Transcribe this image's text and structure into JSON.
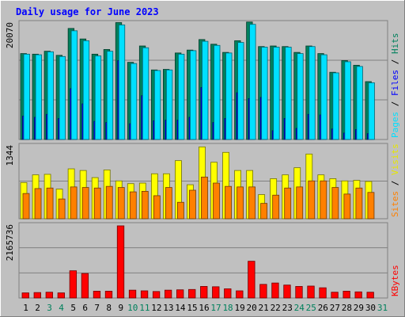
{
  "chart_data": [
    {
      "type": "bar",
      "title": "Daily usage for June 2023",
      "x": [
        "1",
        "2",
        "3",
        "4",
        "5",
        "6",
        "7",
        "8",
        "9",
        "10",
        "11",
        "12",
        "13",
        "14",
        "15",
        "16",
        "17",
        "18",
        "19",
        "20",
        "21",
        "22",
        "23",
        "24",
        "25",
        "26",
        "27",
        "28",
        "29",
        "30",
        "31"
      ],
      "weekend_days": [
        "3",
        "4",
        "10",
        "11",
        "17",
        "18",
        "24",
        "25",
        "31"
      ],
      "ylabel_top_tick": "20070",
      "ylim": [
        0,
        20070
      ],
      "series": [
        {
          "name": "Hits",
          "color": "#00805c",
          "values": [
            14700,
            14600,
            15100,
            14400,
            19000,
            17200,
            14600,
            15400,
            20000,
            13200,
            16000,
            11900,
            12000,
            14800,
            15300,
            17100,
            16300,
            14900,
            16900,
            20100,
            15900,
            16000,
            15900,
            14900,
            16000,
            14700,
            11500,
            13500,
            12700,
            9900,
            null
          ]
        },
        {
          "name": "Files",
          "color": "#0000ff",
          "values": [
            4000,
            3800,
            4300,
            3600,
            8700,
            6100,
            3100,
            2900,
            13500,
            2700,
            7500,
            3200,
            3300,
            3300,
            3800,
            8900,
            2900,
            3600,
            8000,
            7000,
            7200,
            1500,
            3600,
            1900,
            4300,
            4200,
            1800,
            1100,
            1700,
            1000,
            null
          ]
        },
        {
          "name": "Pages",
          "color": "#00e0ff",
          "values": [
            14600,
            14500,
            15000,
            14200,
            18600,
            16900,
            14300,
            15100,
            19600,
            13000,
            15700,
            11800,
            11900,
            14600,
            15200,
            16800,
            16100,
            14800,
            16600,
            19700,
            15800,
            15800,
            15800,
            14700,
            15900,
            14500,
            11400,
            13300,
            12500,
            9700,
            null
          ]
        }
      ]
    },
    {
      "type": "bar",
      "ylabel_top_tick": "1344",
      "ylim": [
        0,
        1344
      ],
      "series": [
        {
          "name": "Visits",
          "color": "#ffff00",
          "values": [
            660,
            800,
            810,
            540,
            910,
            880,
            750,
            890,
            690,
            640,
            650,
            820,
            820,
            1060,
            620,
            1310,
            1030,
            1210,
            880,
            880,
            440,
            730,
            800,
            930,
            1180,
            800,
            730,
            690,
            700,
            680,
            null
          ]
        },
        {
          "name": "Sites",
          "color": "#ff8000",
          "values": [
            460,
            550,
            560,
            360,
            580,
            570,
            560,
            590,
            570,
            490,
            500,
            420,
            570,
            300,
            520,
            760,
            650,
            590,
            580,
            580,
            280,
            430,
            560,
            580,
            690,
            690,
            570,
            450,
            560,
            480,
            null
          ]
        }
      ]
    },
    {
      "type": "bar",
      "ylabel_top_tick": "2165736",
      "ylim": [
        0,
        2165736
      ],
      "series": [
        {
          "name": "KBytes",
          "color": "#ff0000",
          "values": [
            150000,
            160000,
            170000,
            150000,
            800000,
            720000,
            200000,
            200000,
            2120000,
            230000,
            210000,
            190000,
            230000,
            240000,
            250000,
            340000,
            330000,
            270000,
            210000,
            1080000,
            400000,
            440000,
            380000,
            340000,
            350000,
            300000,
            170000,
            200000,
            180000,
            170000,
            null
          ]
        }
      ]
    }
  ]
}
